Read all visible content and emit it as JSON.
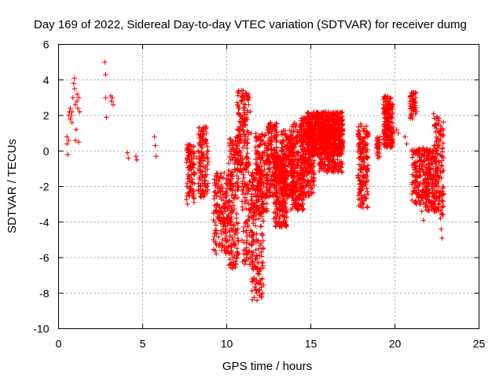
{
  "chart_data": {
    "type": "scatter",
    "title": "Day 169 of 2022, Sidereal Day-to-day VTEC variation (SDTVAR) for receiver dumg",
    "xlabel": "GPS time / hours",
    "ylabel": "SDTVAR / TECUs",
    "xlim": [
      0,
      25
    ],
    "ylim": [
      -10,
      6
    ],
    "xticks": [
      0,
      5,
      10,
      15,
      20,
      25
    ],
    "yticks": [
      -10,
      -8,
      -6,
      -4,
      -2,
      0,
      2,
      4,
      6
    ],
    "xtick_labels": [
      "0",
      "5",
      "10",
      "15",
      "20",
      "25"
    ],
    "ytick_labels": [
      "-10",
      "-8",
      "-6",
      "-4",
      "-2",
      "0",
      "2",
      "4",
      "6"
    ],
    "grid": true,
    "marker": "+",
    "color": "#ff0000",
    "series": [
      {
        "name": "SDTVAR",
        "points": [
          [
            0.5,
            0.8
          ],
          [
            0.5,
            0.4
          ],
          [
            0.55,
            -0.2
          ],
          [
            0.6,
            0.6
          ],
          [
            0.6,
            2.0
          ],
          [
            0.65,
            2.2
          ],
          [
            0.7,
            1.8
          ],
          [
            0.7,
            2.4
          ],
          [
            0.75,
            2.0
          ],
          [
            0.8,
            1.6
          ],
          [
            0.8,
            2.2
          ],
          [
            0.85,
            3.0
          ],
          [
            0.9,
            3.8
          ],
          [
            0.95,
            4.1
          ],
          [
            0.95,
            3.5
          ],
          [
            1.0,
            2.6
          ],
          [
            1.0,
            0.6
          ],
          [
            1.05,
            1.2
          ],
          [
            1.1,
            2.8
          ],
          [
            1.1,
            3.2
          ],
          [
            1.15,
            2.4
          ],
          [
            1.2,
            3.0
          ],
          [
            1.2,
            0.5
          ],
          [
            1.25,
            2.2
          ],
          [
            2.75,
            5.0
          ],
          [
            2.8,
            4.3
          ],
          [
            2.8,
            3.0
          ],
          [
            2.85,
            1.9
          ],
          [
            3.1,
            3.1
          ],
          [
            3.15,
            2.8
          ],
          [
            3.2,
            3.0
          ],
          [
            3.25,
            2.6
          ],
          [
            4.1,
            -0.1
          ],
          [
            4.15,
            -0.4
          ],
          [
            4.6,
            -0.3
          ],
          [
            4.65,
            -0.5
          ],
          [
            5.7,
            0.8
          ],
          [
            5.75,
            0.3
          ],
          [
            5.8,
            -0.3
          ],
          [
            7.7,
            -0.1
          ],
          [
            7.8,
            -0.6
          ],
          [
            7.9,
            -1.0
          ],
          [
            7.95,
            -1.6
          ],
          [
            8.0,
            -2.2
          ],
          [
            8.0,
            -0.8
          ],
          [
            8.05,
            -2.9
          ],
          [
            8.1,
            -1.2
          ],
          [
            8.2,
            -0.4
          ],
          [
            8.3,
            -1.0
          ],
          [
            8.4,
            -1.6
          ],
          [
            8.45,
            -2.0
          ],
          [
            8.5,
            -2.4
          ],
          [
            8.5,
            0.2
          ],
          [
            8.55,
            0.8
          ],
          [
            8.6,
            1.2
          ],
          [
            8.65,
            0.4
          ],
          [
            8.7,
            -0.4
          ],
          [
            8.75,
            0.6
          ],
          [
            8.8,
            1.0
          ],
          [
            8.85,
            0.0
          ],
          [
            8.9,
            -0.6
          ],
          [
            9.3,
            -1.8
          ],
          [
            9.4,
            -1.4
          ],
          [
            9.5,
            -2.0
          ],
          [
            9.6,
            -2.2
          ],
          [
            9.7,
            -5.6
          ],
          [
            9.75,
            -5.0
          ],
          [
            9.8,
            -4.4
          ],
          [
            9.85,
            -3.8
          ],
          [
            9.9,
            -3.2
          ],
          [
            9.95,
            -2.4
          ],
          [
            10.0,
            -4.8
          ],
          [
            10.05,
            -4.2
          ],
          [
            10.1,
            -3.6
          ],
          [
            10.15,
            -2.8
          ],
          [
            10.2,
            -1.8
          ],
          [
            10.25,
            -6.4
          ],
          [
            10.3,
            -5.8
          ],
          [
            10.35,
            -6.6
          ],
          [
            10.4,
            -5.2
          ],
          [
            10.45,
            -4.2
          ],
          [
            10.5,
            -2.2
          ],
          [
            10.5,
            0.4
          ],
          [
            10.55,
            0.8
          ],
          [
            10.6,
            -1.4
          ],
          [
            10.65,
            -0.6
          ],
          [
            10.7,
            1.2
          ],
          [
            10.75,
            2.4
          ],
          [
            10.8,
            2.0
          ],
          [
            10.85,
            2.8
          ],
          [
            10.9,
            3.4
          ],
          [
            10.95,
            3.0
          ],
          [
            11.0,
            1.6
          ],
          [
            11.05,
            0.6
          ],
          [
            11.1,
            -5.6
          ],
          [
            11.15,
            -4.0
          ],
          [
            11.2,
            -6.0
          ],
          [
            11.25,
            -2.4
          ],
          [
            11.3,
            2.6
          ],
          [
            11.35,
            3.0
          ],
          [
            11.4,
            2.2
          ],
          [
            11.45,
            1.0
          ],
          [
            11.5,
            -7.2
          ],
          [
            11.55,
            -6.2
          ],
          [
            11.6,
            -2.0
          ],
          [
            11.65,
            -3.0
          ],
          [
            11.7,
            -4.2
          ],
          [
            11.75,
            -7.8
          ],
          [
            11.8,
            -8.4
          ],
          [
            11.85,
            -6.6
          ],
          [
            11.9,
            -3.8
          ],
          [
            11.95,
            -1.2
          ],
          [
            12.0,
            0.6
          ],
          [
            12.05,
            -0.4
          ],
          [
            12.1,
            -2.6
          ],
          [
            12.15,
            -3.4
          ],
          [
            12.2,
            -1.8
          ],
          [
            12.3,
            -0.6
          ],
          [
            12.4,
            0.2
          ],
          [
            12.5,
            -1.0
          ],
          [
            12.6,
            1.6
          ],
          [
            12.65,
            0.8
          ],
          [
            12.7,
            -0.2
          ],
          [
            12.8,
            -1.6
          ],
          [
            12.9,
            -3.0
          ],
          [
            12.95,
            -4.2
          ],
          [
            13.0,
            -3.6
          ],
          [
            13.05,
            -2.6
          ],
          [
            13.1,
            -1.6
          ],
          [
            13.2,
            -0.8
          ],
          [
            13.3,
            0.4
          ],
          [
            13.4,
            -0.2
          ],
          [
            13.5,
            -1.2
          ],
          [
            13.6,
            -2.0
          ],
          [
            13.7,
            0.8
          ],
          [
            13.8,
            0.2
          ],
          [
            13.9,
            -0.6
          ],
          [
            14.0,
            -1.4
          ],
          [
            14.1,
            1.2
          ],
          [
            14.2,
            0.6
          ],
          [
            14.3,
            -0.6
          ],
          [
            14.4,
            -2.0
          ],
          [
            14.5,
            -3.0
          ],
          [
            14.6,
            0.8
          ],
          [
            14.7,
            1.4
          ],
          [
            14.8,
            0.4
          ],
          [
            14.9,
            -1.2
          ],
          [
            15.0,
            -2.4
          ],
          [
            15.05,
            1.8
          ],
          [
            15.1,
            1.0
          ],
          [
            15.2,
            0.2
          ],
          [
            15.3,
            1.6
          ],
          [
            15.4,
            2.0
          ],
          [
            15.45,
            0.8
          ],
          [
            15.5,
            1.2
          ],
          [
            15.6,
            0.4
          ],
          [
            15.7,
            1.8
          ],
          [
            15.8,
            1.0
          ],
          [
            15.9,
            2.2
          ],
          [
            16.0,
            0.6
          ],
          [
            16.1,
            1.4
          ],
          [
            16.2,
            1.8
          ],
          [
            16.3,
            0.2
          ],
          [
            16.4,
            1.0
          ],
          [
            16.5,
            2.0
          ],
          [
            16.6,
            0.8
          ],
          [
            16.7,
            0.0
          ],
          [
            16.8,
            -0.6
          ],
          [
            16.85,
            -1.2
          ],
          [
            16.9,
            0.6
          ],
          [
            17.9,
            -0.4
          ],
          [
            18.0,
            -1.2
          ],
          [
            18.05,
            -2.0
          ],
          [
            18.1,
            -3.2
          ],
          [
            18.15,
            -2.6
          ],
          [
            18.2,
            0.2
          ],
          [
            18.25,
            0.8
          ],
          [
            18.3,
            1.4
          ],
          [
            18.35,
            0.4
          ],
          [
            18.4,
            -0.8
          ],
          [
            18.9,
            0.6
          ],
          [
            18.95,
            0.2
          ],
          [
            19.0,
            -0.4
          ],
          [
            19.1,
            0.8
          ],
          [
            19.4,
            1.0
          ],
          [
            19.45,
            1.8
          ],
          [
            19.5,
            2.4
          ],
          [
            19.55,
            3.0
          ],
          [
            19.6,
            1.4
          ],
          [
            19.65,
            0.4
          ],
          [
            19.7,
            2.6
          ],
          [
            19.75,
            2.0
          ],
          [
            19.8,
            0.8
          ],
          [
            20.1,
            1.2
          ],
          [
            20.2,
            1.0
          ],
          [
            20.6,
            0.8
          ],
          [
            20.7,
            0.4
          ],
          [
            21.05,
            2.8
          ],
          [
            21.1,
            3.3
          ],
          [
            21.15,
            2.4
          ],
          [
            21.1,
            -0.2
          ],
          [
            21.2,
            -0.8
          ],
          [
            21.3,
            -1.4
          ],
          [
            21.4,
            -2.2
          ],
          [
            21.5,
            -1.8
          ],
          [
            21.55,
            -2.8
          ],
          [
            21.6,
            -3.4
          ],
          [
            21.7,
            -3.9
          ],
          [
            21.75,
            -2.0
          ],
          [
            21.85,
            -1.2
          ],
          [
            22.0,
            -0.2
          ],
          [
            22.05,
            -1.2
          ],
          [
            22.1,
            -1.6
          ],
          [
            22.2,
            -2.4
          ],
          [
            22.25,
            -3.0
          ],
          [
            22.3,
            2.1
          ],
          [
            22.35,
            1.4
          ],
          [
            22.4,
            -1.8
          ],
          [
            22.5,
            -2.6
          ],
          [
            22.6,
            -2.0
          ],
          [
            22.7,
            -3.8
          ],
          [
            22.75,
            -4.4
          ],
          [
            22.8,
            -4.9
          ],
          [
            22.85,
            -2.0
          ],
          [
            22.9,
            -2.4
          ]
        ],
        "clusters": [
          {
            "x": [
              7.6,
              8.1
            ],
            "y": [
              -3.0,
              0.4
            ],
            "n": 90
          },
          {
            "x": [
              8.3,
              8.9
            ],
            "y": [
              -2.6,
              1.4
            ],
            "n": 110
          },
          {
            "x": [
              9.2,
              10.1
            ],
            "y": [
              -5.8,
              -1.2
            ],
            "n": 160
          },
          {
            "x": [
              10.1,
              10.7
            ],
            "y": [
              -6.6,
              0.8
            ],
            "n": 170
          },
          {
            "x": [
              10.6,
              11.3
            ],
            "y": [
              -1.2,
              3.4
            ],
            "n": 130
          },
          {
            "x": [
              10.9,
              11.6
            ],
            "y": [
              -6.4,
              -0.4
            ],
            "n": 120
          },
          {
            "x": [
              11.5,
              12.2
            ],
            "y": [
              -8.4,
              -1.0
            ],
            "n": 150
          },
          {
            "x": [
              11.7,
              12.4
            ],
            "y": [
              -3.6,
              1.0
            ],
            "n": 160
          },
          {
            "x": [
              12.4,
              13.0
            ],
            "y": [
              -2.6,
              1.6
            ],
            "n": 150
          },
          {
            "x": [
              12.8,
              13.6
            ],
            "y": [
              -4.3,
              -0.2
            ],
            "n": 200
          },
          {
            "x": [
              13.2,
              14.0
            ],
            "y": [
              -2.6,
              1.2
            ],
            "n": 200
          },
          {
            "x": [
              13.8,
              14.6
            ],
            "y": [
              -3.4,
              1.6
            ],
            "n": 230
          },
          {
            "x": [
              14.4,
              15.2
            ],
            "y": [
              -2.6,
              2.0
            ],
            "n": 250
          },
          {
            "x": [
              14.8,
              16.9
            ],
            "y": [
              -0.2,
              2.2
            ],
            "n": 600
          },
          {
            "x": [
              15.5,
              16.9
            ],
            "y": [
              -1.2,
              1.4
            ],
            "n": 250
          },
          {
            "x": [
              17.8,
              18.4
            ],
            "y": [
              -3.2,
              1.6
            ],
            "n": 160
          },
          {
            "x": [
              18.9,
              19.1
            ],
            "y": [
              -0.4,
              0.8
            ],
            "n": 25
          },
          {
            "x": [
              19.3,
              19.9
            ],
            "y": [
              0.2,
              3.1
            ],
            "n": 180
          },
          {
            "x": [
              20.9,
              21.3
            ],
            "y": [
              1.8,
              3.4
            ],
            "n": 50
          },
          {
            "x": [
              21.0,
              21.8
            ],
            "y": [
              -3.0,
              0.2
            ],
            "n": 140
          },
          {
            "x": [
              21.8,
              22.5
            ],
            "y": [
              -3.4,
              0.2
            ],
            "n": 150
          },
          {
            "x": [
              22.3,
              22.9
            ],
            "y": [
              -3.6,
              2.0
            ],
            "n": 120
          }
        ]
      }
    ]
  }
}
